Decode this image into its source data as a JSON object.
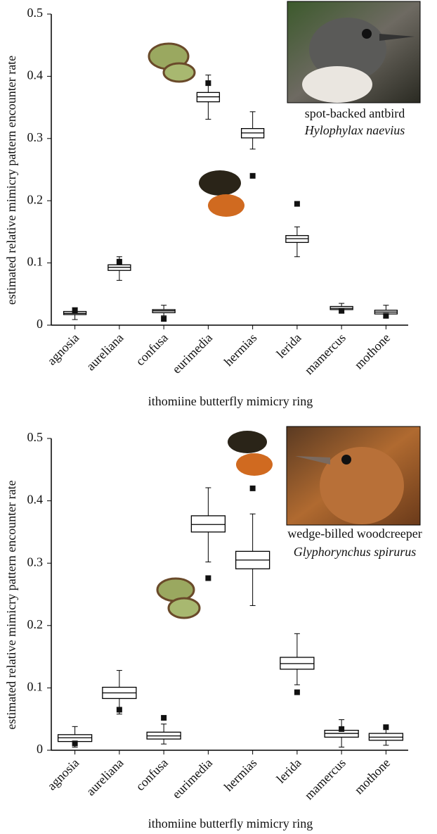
{
  "chart_data": [
    {
      "type": "box",
      "y_label": "estimated relative mimicry pattern encounter rate",
      "x_label": "ithomiine butterfly mimicry ring",
      "annotations": [
        "spot-backed antbird",
        "Hylophylax naevius"
      ],
      "categories": [
        "agnosia",
        "aureliana",
        "confusa",
        "eurimedia",
        "hermias",
        "lerida",
        "mamercus",
        "mothone"
      ],
      "whisker_low": [
        0.009,
        0.072,
        0.015,
        0.331,
        0.283,
        0.11,
        0.02,
        0.012
      ],
      "q1": [
        0.017,
        0.088,
        0.02,
        0.359,
        0.301,
        0.133,
        0.025,
        0.018
      ],
      "median": [
        0.019,
        0.093,
        0.023,
        0.367,
        0.309,
        0.139,
        0.027,
        0.021
      ],
      "q3": [
        0.022,
        0.097,
        0.025,
        0.374,
        0.316,
        0.144,
        0.03,
        0.024
      ],
      "whisker_high": [
        0.028,
        0.11,
        0.032,
        0.402,
        0.343,
        0.158,
        0.035,
        0.032
      ],
      "observed": [
        0.024,
        0.102,
        0.01,
        0.389,
        0.24,
        0.195,
        0.023,
        0.015
      ],
      "ylim": [
        0,
        0.5
      ],
      "yticks": [
        0,
        0.1,
        0.2,
        0.3,
        0.4,
        0.5
      ],
      "color": "#000000"
    },
    {
      "type": "box",
      "y_label": "estimated relative mimicry pattern encounter rate",
      "x_label": "ithomiine butterfly mimicry ring",
      "annotations": [
        "wedge-billed woodcreeper",
        "Glyphorynchus spirurus"
      ],
      "categories": [
        "agnosia",
        "aureliana",
        "confusa",
        "eurimedia",
        "hermias",
        "lerida",
        "mamercus",
        "mothone"
      ],
      "whisker_low": [
        0.005,
        0.058,
        0.01,
        0.302,
        0.232,
        0.105,
        0.005,
        0.008
      ],
      "q1": [
        0.014,
        0.083,
        0.018,
        0.35,
        0.291,
        0.13,
        0.021,
        0.016
      ],
      "median": [
        0.02,
        0.092,
        0.023,
        0.362,
        0.305,
        0.139,
        0.027,
        0.021
      ],
      "q3": [
        0.025,
        0.101,
        0.029,
        0.376,
        0.319,
        0.149,
        0.032,
        0.027
      ],
      "whisker_high": [
        0.038,
        0.128,
        0.042,
        0.421,
        0.379,
        0.187,
        0.049,
        0.037
      ],
      "observed": [
        0.011,
        0.065,
        0.052,
        0.276,
        0.42,
        0.093,
        0.034,
        0.037
      ],
      "ylim": [
        0,
        0.5
      ],
      "yticks": [
        0,
        0.1,
        0.2,
        0.3,
        0.4,
        0.5
      ],
      "color": "#000000"
    }
  ]
}
